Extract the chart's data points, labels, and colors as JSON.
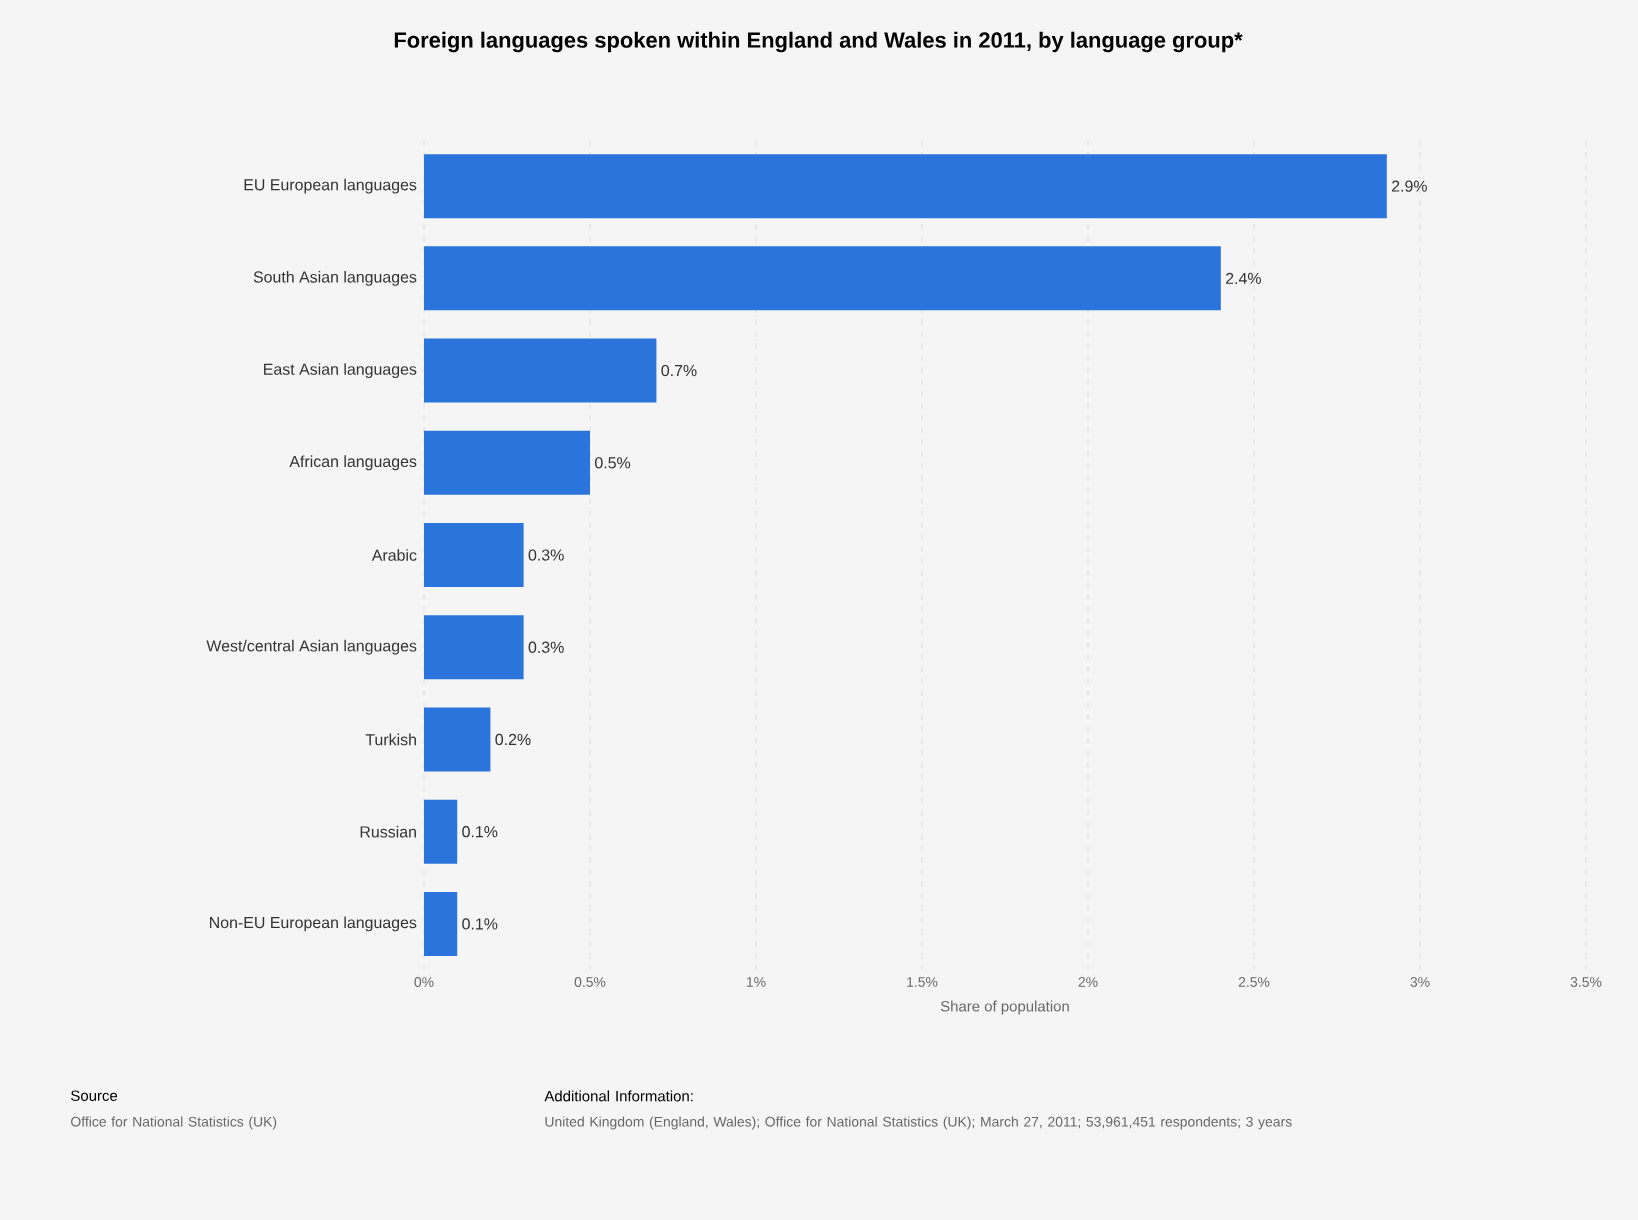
{
  "chart_data": {
    "type": "bar",
    "orientation": "horizontal",
    "title": "Foreign languages spoken within England and Wales in 2011, by language group*",
    "xlabel": "Share of population",
    "categories": [
      "EU European languages",
      "South Asian languages",
      "East Asian languages",
      "African languages",
      "Arabic",
      "West/central Asian languages",
      "Turkish",
      "Russian",
      "Non-EU European languages"
    ],
    "values": [
      2.9,
      2.4,
      0.7,
      0.5,
      0.3,
      0.3,
      0.2,
      0.1,
      0.1
    ],
    "value_labels": [
      "2.9%",
      "2.4%",
      "0.7%",
      "0.5%",
      "0.3%",
      "0.3%",
      "0.2%",
      "0.1%",
      "0.1%"
    ],
    "color": "#2a74dc",
    "xlim": [
      0,
      3.5
    ],
    "xticks": [
      {
        "value": 0,
        "label": "0%"
      },
      {
        "value": 0.5,
        "label": "0.5%"
      },
      {
        "value": 1,
        "label": "1%"
      },
      {
        "value": 1.5,
        "label": "1.5%"
      },
      {
        "value": 2,
        "label": "2%"
      },
      {
        "value": 2.5,
        "label": "2.5%"
      },
      {
        "value": 3,
        "label": "3%"
      },
      {
        "value": 3.5,
        "label": "3.5%"
      }
    ],
    "grid": "x",
    "annotations": [
      "Source",
      "Office for National Statistics (UK)",
      "Additional Information:",
      "United Kingdom (England, Wales); Office for National Statistics (UK); March 27, 2011; 53,961,451 respondents; 3 years"
    ]
  }
}
